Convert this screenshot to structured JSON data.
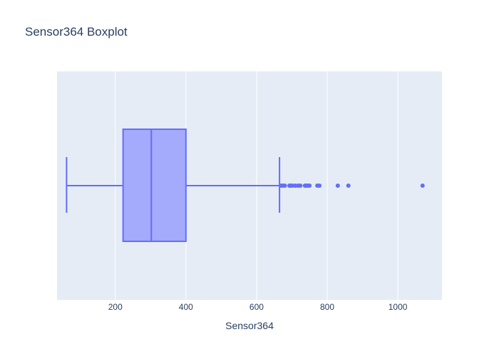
{
  "chart_data": {
    "type": "box",
    "title": "Sensor364 Boxplot",
    "xlabel": "Sensor364",
    "ylabel": "",
    "orientation": "horizontal",
    "xlim": [
      35,
      1125
    ],
    "xticks": [
      200,
      400,
      600,
      800,
      1000
    ],
    "grid": true,
    "series": [
      {
        "lowerfence": 62,
        "q1": 222,
        "median": 302,
        "q3": 400,
        "upperfence": 665,
        "outliers": [
          670,
          675,
          680,
          693,
          697,
          702,
          710,
          718,
          724,
          737,
          741,
          745,
          750,
          772,
          778,
          830,
          860,
          1070
        ]
      }
    ],
    "colors": {
      "line": "#636efa",
      "fill": "#a4aafc",
      "plot_bg": "#e5ecf6",
      "grid": "#ffffff",
      "text": "#2a3f5f"
    }
  }
}
